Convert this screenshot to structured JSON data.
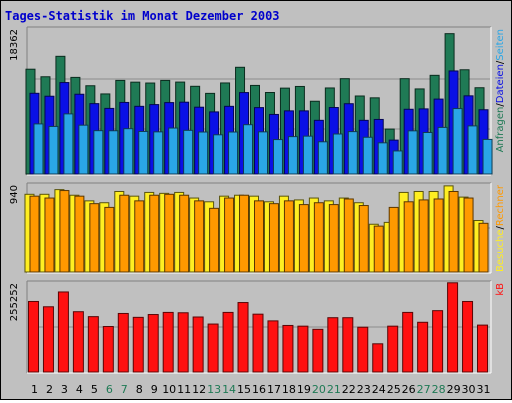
{
  "title": "Tages-Statistik im Monat Dezember 2003",
  "colors": {
    "title": "#0000cc",
    "panel_bg": "#c0c0c0",
    "grid": "#8c8c8c",
    "anfragen": "#1f7a55",
    "dateien": "#0a10e6",
    "seiten": "#2aa6e6",
    "besuche": "#ffee22",
    "rechner": "#ff9900",
    "kb": "#ff1010",
    "weekend_label": "#1f7a55",
    "slash": "#000000"
  },
  "chart_data": [
    {
      "type": "bar",
      "panel": "top",
      "max_label": "18362",
      "ylim": [
        0,
        18362
      ],
      "side_labels": [
        {
          "text": "Anfragen",
          "color": "#1f7a55"
        },
        {
          "text": "/",
          "color": "#000000"
        },
        {
          "text": "Dateien",
          "color": "#0a10e6"
        },
        {
          "text": "/",
          "color": "#000000"
        },
        {
          "text": "Seiten",
          "color": "#2aa6e6"
        }
      ],
      "categories": [
        "1",
        "2",
        "3",
        "4",
        "5",
        "6",
        "7",
        "8",
        "9",
        "10",
        "11",
        "12",
        "13",
        "14",
        "15",
        "16",
        "17",
        "18",
        "19",
        "20",
        "21",
        "22",
        "23",
        "24",
        "25",
        "26",
        "27",
        "28",
        "29",
        "30",
        "31"
      ],
      "series": [
        {
          "name": "Anfragen",
          "values": [
            13180,
            12230,
            14800,
            12150,
            11100,
            10070,
            11770,
            11550,
            11440,
            11770,
            11560,
            11030,
            10140,
            11450,
            13420,
            11140,
            10250,
            10800,
            11010,
            9150,
            10820,
            11990,
            9810,
            9580,
            5650,
            11990,
            10700,
            12410,
            17650,
            13110,
            10850
          ]
        },
        {
          "name": "Dateien",
          "values": [
            10150,
            9780,
            11500,
            10030,
            8850,
            8250,
            9000,
            8510,
            8730,
            8980,
            9030,
            8400,
            7810,
            8510,
            10240,
            8350,
            7490,
            7940,
            7940,
            6750,
            8360,
            8840,
            6750,
            6860,
            4260,
            8140,
            8190,
            9420,
            12960,
            9830,
            8080
          ]
        },
        {
          "name": "Seiten",
          "values": [
            6300,
            5980,
            7560,
            6140,
            5450,
            5440,
            5700,
            5350,
            5300,
            5780,
            5490,
            5280,
            4930,
            5280,
            6200,
            5300,
            4330,
            4700,
            4760,
            4050,
            5030,
            5330,
            4620,
            3920,
            2900,
            5430,
            5220,
            5860,
            8230,
            6050,
            4350
          ]
        }
      ]
    },
    {
      "type": "bar",
      "panel": "middle",
      "max_label": "940",
      "ylim": [
        0,
        940
      ],
      "side_labels": [
        {
          "text": "Besuche",
          "color": "#ffee22"
        },
        {
          "text": "/",
          "color": "#000000"
        },
        {
          "text": "Rechner",
          "color": "#ff9900"
        }
      ],
      "categories": [
        "1",
        "2",
        "3",
        "4",
        "5",
        "6",
        "7",
        "8",
        "9",
        "10",
        "11",
        "12",
        "13",
        "14",
        "15",
        "16",
        "17",
        "18",
        "19",
        "20",
        "21",
        "22",
        "23",
        "24",
        "25",
        "26",
        "27",
        "28",
        "29",
        "30",
        "31"
      ],
      "series": [
        {
          "name": "Besuche",
          "values": [
            830,
            830,
            880,
            820,
            760,
            740,
            860,
            810,
            850,
            840,
            850,
            790,
            750,
            810,
            820,
            810,
            750,
            810,
            770,
            790,
            760,
            790,
            740,
            510,
            530,
            850,
            860,
            860,
            920,
            800,
            550
          ]
        },
        {
          "name": "Rechner",
          "values": [
            810,
            790,
            870,
            810,
            730,
            690,
            820,
            760,
            820,
            830,
            820,
            760,
            680,
            790,
            820,
            760,
            730,
            760,
            720,
            740,
            720,
            780,
            710,
            490,
            690,
            750,
            770,
            780,
            860,
            790,
            520
          ]
        }
      ]
    },
    {
      "type": "bar",
      "panel": "bottom",
      "max_label": "255252",
      "ylim": [
        0,
        255252
      ],
      "side_labels": [
        {
          "text": "kB",
          "color": "#ff1010"
        }
      ],
      "categories": [
        "1",
        "2",
        "3",
        "4",
        "5",
        "6",
        "7",
        "8",
        "9",
        "10",
        "11",
        "12",
        "13",
        "14",
        "15",
        "16",
        "17",
        "18",
        "19",
        "20",
        "21",
        "22",
        "23",
        "24",
        "25",
        "26",
        "27",
        "28",
        "29",
        "30",
        "31"
      ],
      "series": [
        {
          "name": "kB",
          "values": [
            200000,
            185000,
            227000,
            171000,
            157000,
            129000,
            166000,
            155000,
            163000,
            169000,
            168000,
            156000,
            136000,
            169000,
            197000,
            164000,
            145000,
            132000,
            130000,
            121000,
            154000,
            154000,
            127000,
            80000,
            130000,
            169000,
            141000,
            174000,
            253000,
            200000,
            133000
          ]
        }
      ]
    }
  ],
  "weekend_days": [
    "6",
    "7",
    "13",
    "14",
    "20",
    "21",
    "27",
    "28"
  ]
}
